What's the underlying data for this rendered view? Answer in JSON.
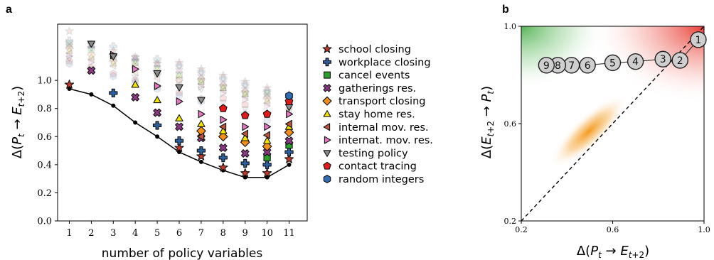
{
  "chart_data": [
    {
      "panel": "a",
      "type": "scatter",
      "xlabel": "number of policy variables",
      "ylabel": "Δ(P_t → E_{t+2})",
      "categories": [
        "1",
        "2",
        "3",
        "4",
        "5",
        "6",
        "7",
        "8",
        "9",
        "10",
        "11"
      ],
      "yticks": [
        "0.0",
        "0.2",
        "0.4",
        "0.6",
        "0.8",
        "1.0"
      ],
      "ylim": [
        0.0,
        1.4
      ],
      "xlim": [
        0.5,
        11.5
      ],
      "legend_position": "right",
      "min_line": [
        0.94,
        0.9,
        0.82,
        0.7,
        0.6,
        0.49,
        0.42,
        0.36,
        0.31,
        0.31,
        0.4
      ],
      "series": [
        {
          "name": "school closing",
          "marker": "star",
          "color": "#c0392b",
          "values": [
            0.97,
            null,
            null,
            null,
            null,
            0.52,
            0.46,
            0.38,
            0.34,
            0.34,
            0.44
          ]
        },
        {
          "name": "workplace closing",
          "marker": "plus",
          "color": "#2c5f9e",
          "values": [
            null,
            null,
            0.91,
            null,
            0.68,
            0.57,
            0.5,
            0.45,
            0.41,
            0.4,
            0.49
          ]
        },
        {
          "name": "cancel events",
          "marker": "square",
          "color": "#2ca02c",
          "values": [
            null,
            null,
            null,
            null,
            null,
            null,
            null,
            null,
            null,
            0.45,
            0.54
          ]
        },
        {
          "name": "gatherings res.",
          "marker": "x",
          "color": "#8e3a86",
          "values": [
            null,
            1.07,
            null,
            0.88,
            0.77,
            0.67,
            0.59,
            0.52,
            0.48,
            0.49,
            0.57
          ]
        },
        {
          "name": "transport closing",
          "marker": "diamond",
          "color": "#f28e1c",
          "values": [
            null,
            null,
            null,
            null,
            null,
            null,
            0.64,
            0.6,
            0.56,
            0.53,
            0.63
          ]
        },
        {
          "name": "stay home res.",
          "marker": "triangle-up",
          "color": "#f5e400",
          "values": [
            null,
            null,
            null,
            0.97,
            0.86,
            0.73,
            0.69,
            0.64,
            0.59,
            0.57,
            0.67
          ]
        },
        {
          "name": "internal mov. res.",
          "marker": "triangle-left",
          "color": "#b7553d",
          "values": [
            null,
            null,
            null,
            null,
            null,
            null,
            0.6,
            0.67,
            0.62,
            0.61,
            0.69
          ]
        },
        {
          "name": "internat. mov. res.",
          "marker": "triangle-right",
          "color": "#e377c2",
          "values": [
            null,
            null,
            1.18,
            1.08,
            0.96,
            0.85,
            0.76,
            0.72,
            0.67,
            0.67,
            0.76
          ]
        },
        {
          "name": "testing policy",
          "marker": "triangle-down",
          "color": "#8c8c8c",
          "values": [
            null,
            1.26,
            1.17,
            null,
            1.05,
            0.95,
            0.86,
            null,
            null,
            null,
            0.81
          ]
        },
        {
          "name": "contact tracing",
          "marker": "pentagon",
          "color": "#e31a1c",
          "values": [
            null,
            null,
            null,
            null,
            null,
            null,
            null,
            0.8,
            0.75,
            0.76,
            0.85
          ]
        },
        {
          "name": "random integers",
          "marker": "hexagon",
          "color": "#2f6db5",
          "values": [
            null,
            null,
            null,
            null,
            null,
            null,
            null,
            null,
            null,
            null,
            0.89
          ]
        }
      ]
    },
    {
      "panel": "b",
      "type": "scatter",
      "xlabel": "Δ(P_t → E_{t+2})",
      "ylabel": "Δ(E_{t+2} → P_t)",
      "xlim": [
        0.2,
        1.0
      ],
      "ylim": [
        0.2,
        1.0
      ],
      "xticks": [
        "0.2",
        "0.6",
        "1.0"
      ],
      "yticks": [
        "0.2",
        "0.6",
        "1.0"
      ],
      "diagonal": "y = x (dashed)",
      "points": [
        {
          "label": "1",
          "x": 0.975,
          "y": 0.945
        },
        {
          "label": "2",
          "x": 0.895,
          "y": 0.86
        },
        {
          "label": "3",
          "x": 0.82,
          "y": 0.865
        },
        {
          "label": "4",
          "x": 0.7,
          "y": 0.855
        },
        {
          "label": "5",
          "x": 0.6,
          "y": 0.85
        },
        {
          "label": "6",
          "x": 0.49,
          "y": 0.84
        },
        {
          "label": "7",
          "x": 0.42,
          "y": 0.84
        },
        {
          "label": "8",
          "x": 0.36,
          "y": 0.84
        },
        {
          "label": "9",
          "x": 0.31,
          "y": 0.84
        }
      ]
    }
  ],
  "legend": [
    {
      "label": "school closing",
      "marker": "star",
      "color": "#c0392b"
    },
    {
      "label": "workplace closing",
      "marker": "plus",
      "color": "#2c5f9e"
    },
    {
      "label": "cancel events",
      "marker": "square",
      "color": "#2ca02c"
    },
    {
      "label": "gatherings res.",
      "marker": "x",
      "color": "#8e3a86"
    },
    {
      "label": "transport closing",
      "marker": "diamond",
      "color": "#f28e1c"
    },
    {
      "label": "stay home res.",
      "marker": "triangle-up",
      "color": "#f5e400"
    },
    {
      "label": "internal mov. res.",
      "marker": "triangle-left",
      "color": "#b7553d"
    },
    {
      "label": "internat. mov. res.",
      "marker": "triangle-right",
      "color": "#e377c2"
    },
    {
      "label": "testing policy",
      "marker": "triangle-down",
      "color": "#8c8c8c"
    },
    {
      "label": "contact tracing",
      "marker": "pentagon",
      "color": "#e31a1c"
    },
    {
      "label": "random integers",
      "marker": "hexagon",
      "color": "#2f6db5"
    }
  ],
  "panel_labels": {
    "a": "a",
    "b": "b"
  }
}
